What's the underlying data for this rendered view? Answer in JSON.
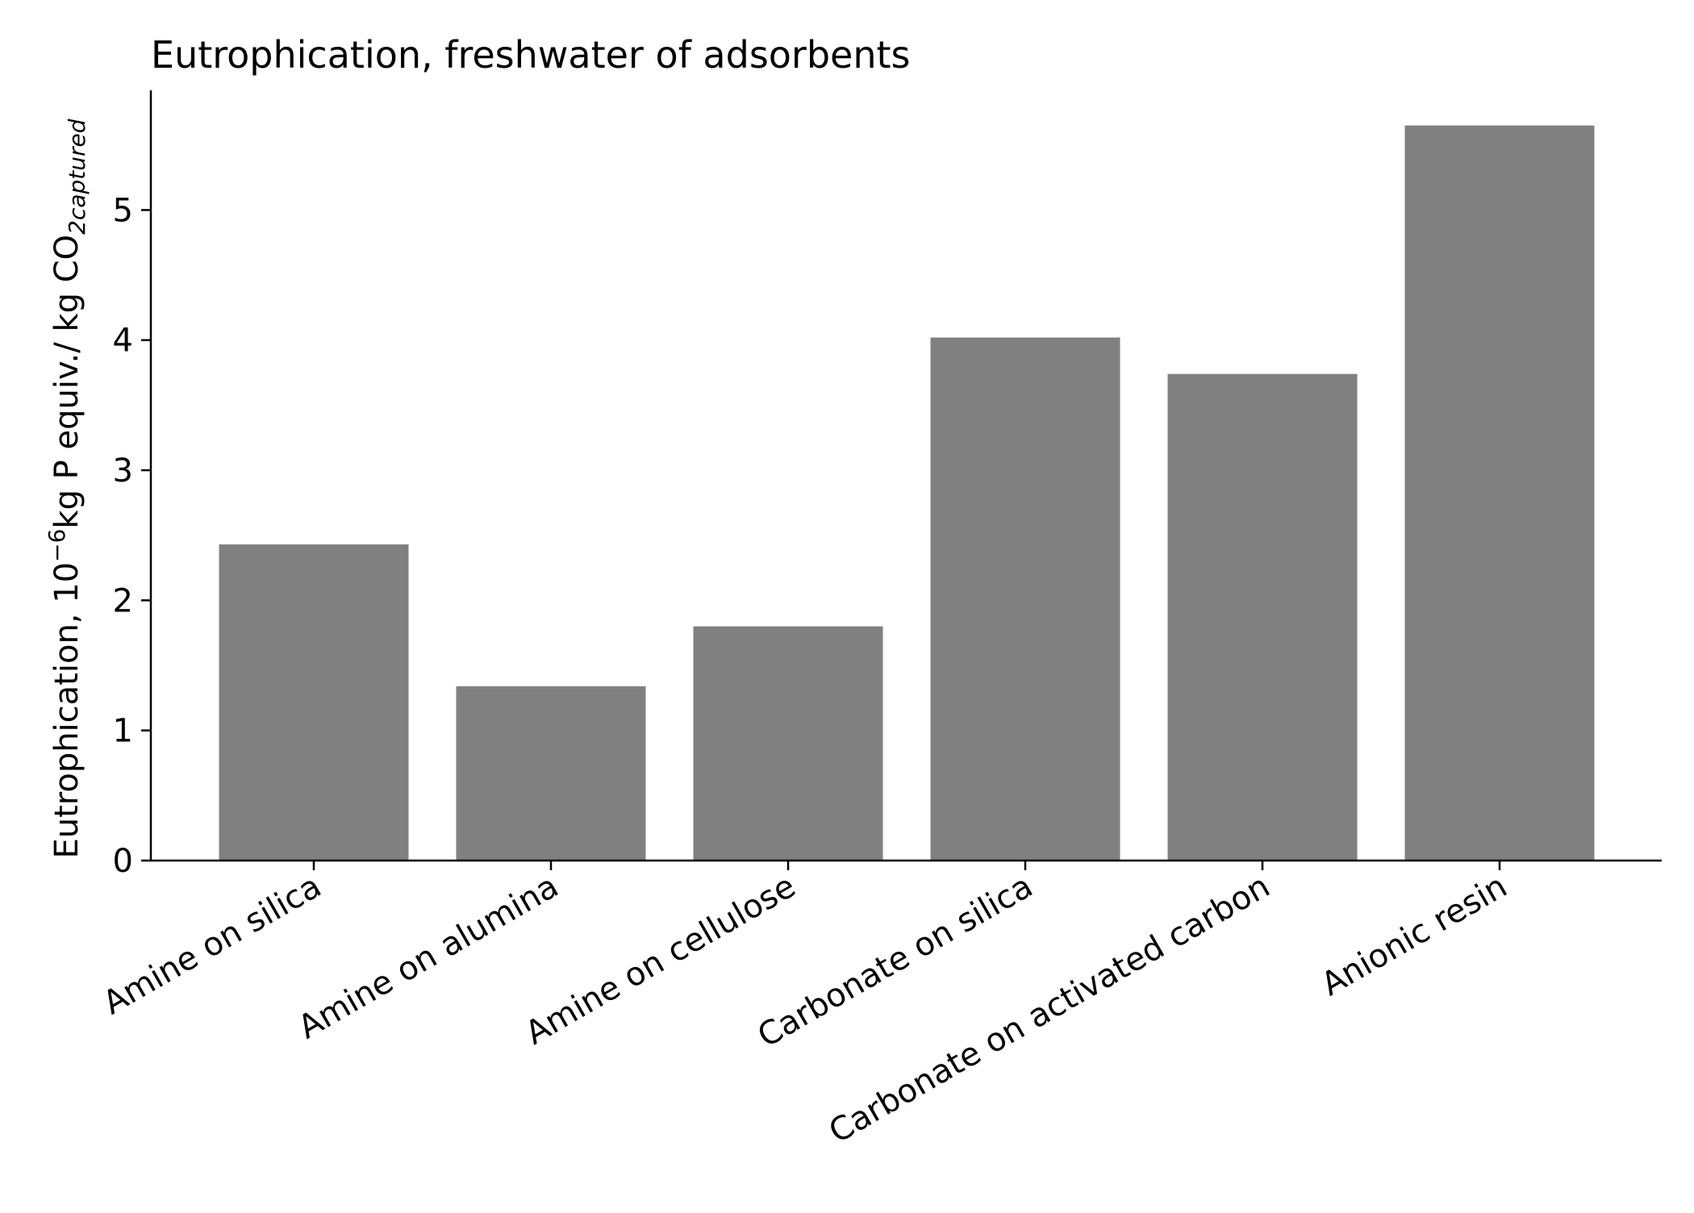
{
  "chart_data": {
    "type": "bar",
    "title": "Eutrophication, freshwater of adsorbents",
    "ylabel": {
      "main": "Eutrophication, 10",
      "exponent": "−6",
      "unit": "kg P equiv./ kg CO",
      "subscript": "2captured"
    },
    "xlabel": "",
    "categories": [
      "Amine on silica",
      "Amine on alumina",
      "Amine on cellulose",
      "Carbonate on silica",
      "Carbonate on activated carbon",
      "Anionic resin"
    ],
    "values": [
      2.43,
      1.34,
      1.8,
      4.02,
      3.74,
      5.65
    ],
    "ylim": [
      0,
      5.92
    ],
    "yticks": [
      "0",
      "1",
      "2",
      "3",
      "4",
      "5"
    ],
    "bar_color": "#808080",
    "grid": false,
    "legend": "none"
  }
}
